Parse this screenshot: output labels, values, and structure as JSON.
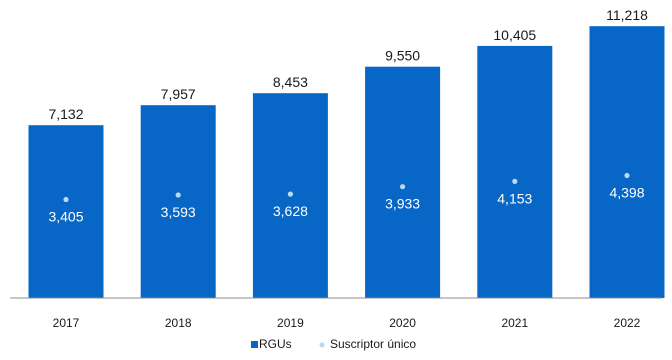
{
  "chart_data": {
    "type": "bar",
    "categories": [
      "2017",
      "2018",
      "2019",
      "2020",
      "2021",
      "2022"
    ],
    "series": [
      {
        "name": "RGUs",
        "kind": "bar",
        "values": [
          7132,
          7957,
          8453,
          9550,
          10405,
          11218
        ],
        "labels": [
          "7,132",
          "7,957",
          "8,453",
          "9,550",
          "10,405",
          "11,218"
        ]
      },
      {
        "name": "Suscriptor único",
        "kind": "scatter",
        "values": [
          3405,
          3593,
          3628,
          3933,
          4153,
          4398
        ],
        "labels": [
          "3,405",
          "3,593",
          "3,628",
          "3,933",
          "4,153",
          "4,398"
        ]
      }
    ],
    "ylim": [
      0,
      12000
    ],
    "grid": false,
    "legend_position": "bottom-center"
  },
  "colors": {
    "bar": "#0866c6",
    "marker": "#bcd9f2",
    "axis": "#8c8c8c"
  }
}
